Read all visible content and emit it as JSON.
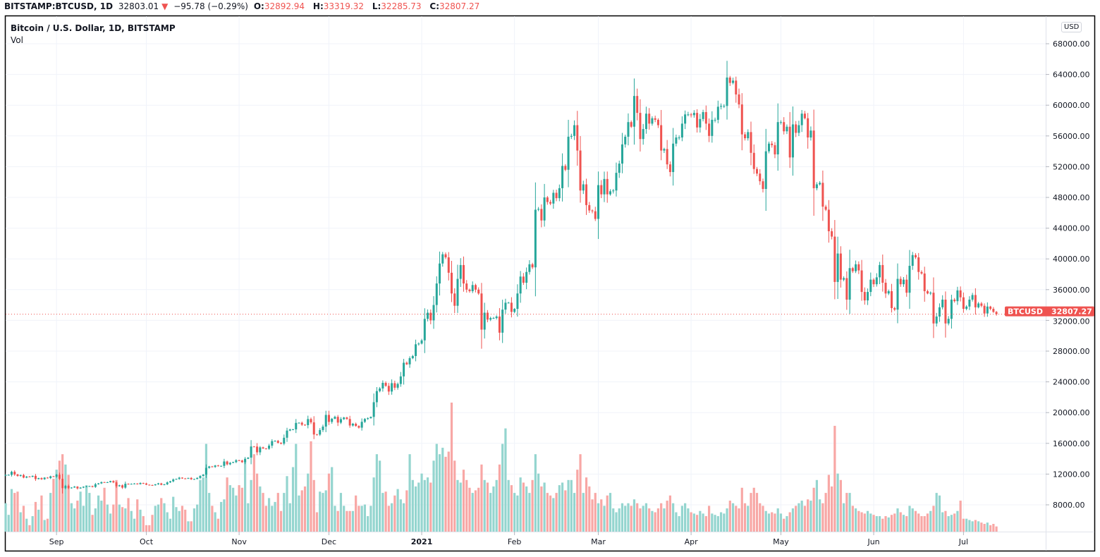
{
  "header": {
    "symbol": "BITSTAMP:BTCUSD, 1D",
    "last": "32803.01",
    "change": "−95.78 (−0.29%)",
    "o_label": "O:",
    "o": "32892.94",
    "h_label": "H:",
    "h": "33319.32",
    "l_label": "L:",
    "l": "32285.73",
    "c_label": "C:",
    "c": "32807.27",
    "down_icon": "triangle-down-icon"
  },
  "legend": {
    "title": "Bitcoin / U.S. Dollar, 1D, BITSTAMP",
    "vol": "Vol"
  },
  "currency_button": "USD",
  "price_label": {
    "symbol": "BTCUSD",
    "value": "32807.27"
  },
  "colors": {
    "up": "#26a69a",
    "down": "#ef5350",
    "up_vol": "#94d5cf",
    "down_vol": "#f8a7a5",
    "grid": "#f0f3fa"
  },
  "chart_data": {
    "type": "candlestick",
    "title": "Bitcoin / U.S. Dollar, 1D, BITSTAMP",
    "start_date": "2020-08-15",
    "price_unit": "thousand USD",
    "ylim": [
      4,
      70
    ],
    "y_ticks": [
      "68000.00",
      "64000.00",
      "60000.00",
      "56000.00",
      "52000.00",
      "48000.00",
      "44000.00",
      "40000.00",
      "36000.00",
      "32000.00",
      "28000.00",
      "24000.00",
      "20000.00",
      "16000.00",
      "12000.00",
      "8000.00"
    ],
    "y_tick_values": [
      68,
      64,
      60,
      56,
      52,
      48,
      44,
      40,
      36,
      32,
      28,
      24,
      20,
      16,
      12,
      8
    ],
    "x_ticks": [
      {
        "label": "Sep",
        "day_index": 17
      },
      {
        "label": "Oct",
        "day_index": 47
      },
      {
        "label": "Nov",
        "day_index": 78
      },
      {
        "label": "Dec",
        "day_index": 108
      },
      {
        "label": "2021",
        "day_index": 139
      },
      {
        "label": "Feb",
        "day_index": 170
      },
      {
        "label": "Mar",
        "day_index": 198
      },
      {
        "label": "Apr",
        "day_index": 229
      },
      {
        "label": "May",
        "day_index": 259
      },
      {
        "label": "Jun",
        "day_index": 290
      },
      {
        "label": "Jul",
        "day_index": 320
      }
    ],
    "first_open": 11.8,
    "close": [
      11.9,
      11.9,
      12.3,
      11.95,
      11.75,
      11.87,
      11.54,
      11.68,
      11.65,
      11.77,
      11.35,
      11.48,
      11.33,
      11.54,
      11.48,
      11.71,
      11.66,
      11.92,
      11.39,
      10.17,
      10.47,
      10.17,
      10.25,
      10.37,
      10.13,
      10.24,
      10.36,
      10.4,
      10.44,
      10.33,
      10.68,
      10.79,
      10.95,
      10.94,
      10.94,
      11.09,
      10.92,
      10.42,
      10.54,
      10.24,
      10.74,
      10.69,
      10.73,
      10.77,
      10.69,
      10.84,
      10.78,
      10.62,
      10.57,
      10.55,
      10.67,
      10.79,
      10.6,
      10.67,
      10.92,
      11.06,
      11.3,
      11.37,
      11.54,
      11.43,
      11.42,
      11.5,
      11.32,
      11.36,
      11.5,
      11.75,
      11.92,
      12.81,
      12.99,
      12.93,
      13.12,
      13.03,
      13.07,
      13.64,
      13.27,
      13.46,
      13.56,
      13.8,
      13.76,
      13.55,
      13.99,
      14.14,
      15.59,
      15.58,
      14.83,
      15.48,
      15.33,
      15.3,
      15.7,
      16.29,
      16.32,
      16.07,
      15.96,
      16.73,
      17.66,
      17.8,
      17.82,
      18.66,
      18.68,
      18.42,
      18.37,
      19.16,
      18.73,
      17.15,
      17.14,
      17.73,
      18.18,
      19.7,
      18.79,
      19.2,
      19.45,
      18.7,
      19.15,
      19.36,
      19.17,
      18.32,
      18.55,
      18.26,
      18.04,
      18.8,
      19.17,
      19.27,
      19.44,
      21.35,
      22.8,
      23.14,
      23.87,
      23.48,
      22.74,
      23.83,
      23.24,
      23.73,
      24.71,
      26.49,
      26.28,
      27.08,
      27.36,
      28.89,
      28.98,
      29.4,
      32.2,
      33.0,
      32.0,
      34.0,
      36.8,
      39.4,
      40.6,
      40.2,
      38.2,
      35.5,
      33.9,
      37.4,
      39.2,
      36.8,
      36.0,
      35.8,
      36.6,
      36.0,
      35.5,
      30.8,
      33.0,
      32.1,
      32.3,
      32.3,
      32.5,
      30.4,
      33.4,
      34.3,
      34.3,
      33.1,
      33.5,
      35.5,
      37.7,
      36.9,
      38.3,
      39.3,
      38.9,
      46.4,
      46.5,
      45.0,
      48.0,
      47.4,
      47.2,
      48.6,
      47.9,
      49.2,
      52.1,
      51.6,
      55.9,
      56.0,
      57.4,
      54.1,
      48.9,
      49.7,
      47.0,
      46.3,
      46.2,
      45.2,
      49.6,
      48.4,
      50.4,
      48.4,
      48.8,
      48.9,
      51.2,
      52.4,
      54.9,
      55.9,
      57.8,
      57.2,
      61.2,
      59.0,
      55.6,
      56.9,
      58.9,
      57.6,
      58.3,
      58.1,
      57.4,
      54.1,
      54.3,
      52.3,
      51.3,
      55.0,
      55.8,
      55.8,
      57.6,
      58.8,
      58.8,
      58.7,
      59.0,
      57.1,
      58.2,
      59.1,
      57.6,
      56.0,
      58.1,
      58.1,
      59.8,
      59.9,
      59.9,
      63.6,
      62.9,
      63.2,
      61.4,
      60.1,
      56.2,
      55.7,
      56.5,
      53.8,
      51.7,
      51.1,
      50.1,
      49.1,
      54.0,
      55.0,
      54.8,
      53.6,
      57.8,
      57.8,
      56.6,
      57.2,
      53.2,
      57.5,
      56.4,
      57.4,
      58.9,
      58.3,
      55.8,
      56.7,
      49.2,
      49.7,
      49.9,
      46.8,
      46.4,
      43.6,
      42.9,
      37.0,
      40.7,
      37.3,
      37.5,
      34.7,
      38.8,
      38.4,
      39.3,
      38.5,
      35.7,
      34.6,
      35.7,
      37.3,
      36.7,
      37.6,
      39.2,
      36.9,
      35.5,
      35.8,
      33.6,
      33.4,
      37.4,
      36.7,
      37.3,
      35.6,
      39.1,
      40.5,
      40.2,
      38.3,
      38.1,
      35.8,
      35.5,
      35.6,
      31.6,
      32.5,
      33.7,
      34.7,
      31.6,
      32.2,
      34.7,
      34.5,
      35.9,
      35.0,
      33.5,
      33.8,
      34.7,
      35.3,
      33.7,
      34.2,
      33.9,
      32.9,
      33.8,
      33.5,
      33.1,
      32.81
    ],
    "volume_relative": [
      22,
      13,
      33,
      30,
      31,
      15,
      20,
      10,
      5,
      12,
      23,
      17,
      28,
      9,
      10,
      30,
      41,
      48,
      55,
      60,
      52,
      44,
      22,
      18,
      24,
      31,
      20,
      36,
      30,
      13,
      18,
      28,
      24,
      34,
      21,
      14,
      21,
      40,
      21,
      19,
      18,
      26,
      16,
      10,
      25,
      17,
      12,
      5,
      5,
      13,
      20,
      21,
      26,
      22,
      15,
      10,
      27,
      19,
      16,
      20,
      17,
      8,
      8,
      18,
      21,
      40,
      42,
      68,
      30,
      20,
      15,
      10,
      23,
      25,
      42,
      36,
      34,
      28,
      36,
      34,
      55,
      22,
      40,
      60,
      45,
      35,
      30,
      20,
      26,
      20,
      23,
      30,
      16,
      30,
      43,
      22,
      50,
      68,
      28,
      32,
      35,
      45,
      70,
      40,
      15,
      31,
      30,
      32,
      45,
      50,
      20,
      16,
      30,
      20,
      16,
      16,
      16,
      28,
      20,
      20,
      21,
      12,
      20,
      42,
      60,
      55,
      30,
      31,
      20,
      22,
      28,
      33,
      25,
      22,
      32,
      60,
      40,
      35,
      38,
      45,
      40,
      42,
      38,
      55,
      68,
      60,
      65,
      58,
      62,
      100,
      55,
      40,
      38,
      48,
      40,
      34,
      30,
      32,
      34,
      52,
      40,
      38,
      30,
      35,
      40,
      52,
      68,
      80,
      40,
      36,
      30,
      28,
      42,
      38,
      35,
      30,
      40,
      60,
      45,
      35,
      38,
      30,
      28,
      26,
      30,
      36,
      38,
      32,
      40,
      40,
      30,
      48,
      60,
      30,
      42,
      35,
      25,
      30,
      22,
      25,
      20,
      28,
      30,
      18,
      15,
      18,
      22,
      20,
      22,
      20,
      25,
      22,
      18,
      20,
      22,
      18,
      16,
      15,
      18,
      22,
      18,
      24,
      28,
      22,
      15,
      12,
      20,
      22,
      18,
      15,
      14,
      13,
      16,
      14,
      12,
      20,
      14,
      13,
      12,
      15,
      14,
      18,
      24,
      22,
      20,
      18,
      34,
      22,
      20,
      30,
      34,
      30,
      22,
      20,
      16,
      14,
      15,
      14,
      18,
      14,
      10,
      12,
      15,
      18,
      20,
      22,
      24,
      20,
      25,
      24,
      34,
      40,
      25,
      22,
      30,
      44,
      35,
      82,
      45,
      40,
      22,
      30,
      30,
      20,
      18,
      16,
      15,
      14,
      16,
      14,
      13,
      12,
      12,
      10,
      12,
      11,
      13,
      14,
      18,
      15,
      13,
      12,
      20,
      18,
      16,
      14,
      12,
      12,
      14,
      16,
      20,
      30,
      28,
      15,
      16,
      12,
      13,
      14,
      16,
      24,
      10,
      10,
      9,
      8,
      9,
      8,
      7,
      6,
      7,
      5,
      6,
      4
    ],
    "last_price": 32.80727
  }
}
